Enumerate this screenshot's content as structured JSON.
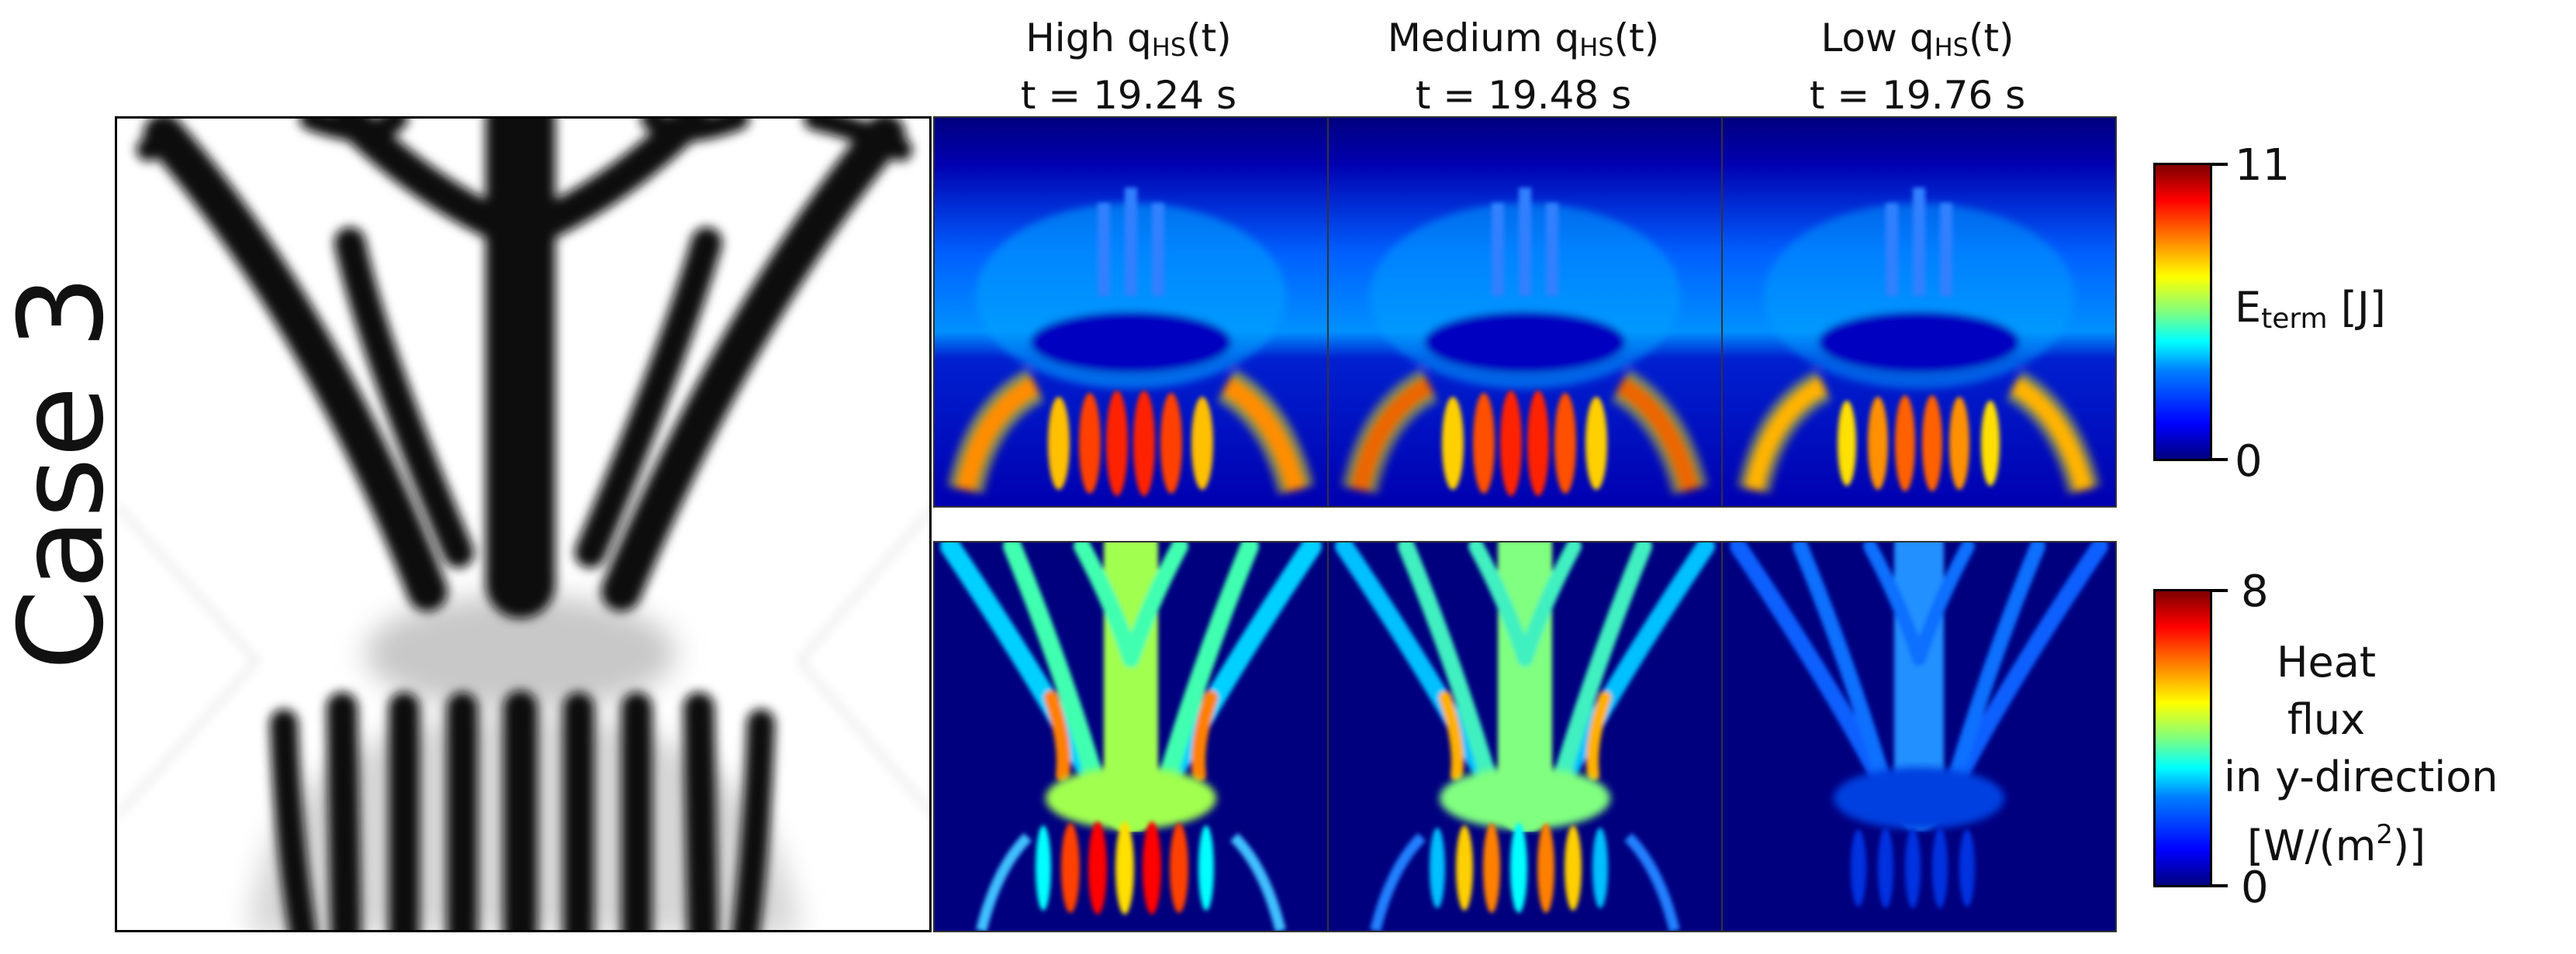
{
  "case_label": "Case 3",
  "columns": [
    {
      "name": "High",
      "q_main": "q",
      "q_sub": "HS",
      "q_suffix": "(t)",
      "time": "t = 19.24 s"
    },
    {
      "name": "Medium",
      "q_main": "q",
      "q_sub": "HS",
      "q_suffix": "(t)",
      "time": "t = 19.48 s"
    },
    {
      "name": "Low",
      "q_main": "q",
      "q_sub": "HS",
      "q_suffix": "(t)",
      "time": "t = 19.76 s"
    }
  ],
  "colorbars": [
    {
      "max": "11",
      "min": "0",
      "title_main": "E",
      "title_sub": "term",
      "title_unit": " [J]"
    },
    {
      "max": "8",
      "min": "0",
      "line1": "Heat flux",
      "line2": "in y-direction",
      "line3_pre": "[W/(m",
      "line3_sup": "2",
      "line3_post": ")]"
    }
  ],
  "colors": {
    "field_background": "#00007f",
    "colormap": "jet",
    "structure": "#111111"
  },
  "intensity": {
    "energy": [
      1.0,
      0.95,
      0.8
    ],
    "heat_flux": [
      0.9,
      0.75,
      0.35
    ]
  }
}
